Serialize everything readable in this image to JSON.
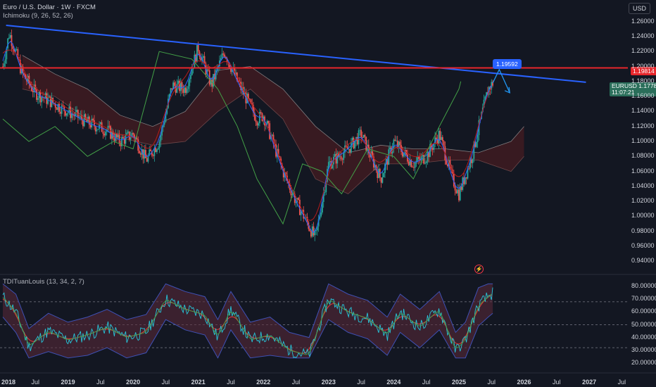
{
  "header": {
    "title": "Euro / U.S. Dollar · 1W · FXCM",
    "ichimoku_label": "Ichimoku (9, 26, 52, 26)",
    "tdi_label": "TDITuanLouis (13, 34, 2, 7)",
    "currency_button": "USD"
  },
  "annotations": {
    "resistance_price": "1.19814",
    "callout_price": "1.19592",
    "pair_symbol": "EURUSD",
    "pair_price": "1.17781",
    "pair_countdown": "11:07:21"
  },
  "colors": {
    "background": "#131722",
    "up_candle": "#26a69a",
    "down_candle": "#ef5350",
    "trendline": "#2962ff",
    "resistance_line": "#e7262b",
    "tenkan": "#2962ff",
    "kijun": "#b71c1c",
    "lagging_span": "#43a047",
    "cloud_bull": "#1b5e20",
    "cloud_bear": "#7f2020"
  },
  "chart_data": [
    {
      "type": "candlestick",
      "symbol": "EURUSD",
      "timeframe": "1W",
      "ylim": [
        0.93,
        1.27
      ],
      "y_ticks": [
        "1.26000",
        "1.24000",
        "1.22000",
        "1.20000",
        "1.18000",
        "1.16000",
        "1.14000",
        "1.12000",
        "1.10000",
        "1.08000",
        "1.06000",
        "1.04000",
        "1.02000",
        "1.00000",
        "0.98000",
        "0.96000",
        "0.94000"
      ],
      "x_ticks": [
        "2018",
        "Jul",
        "2019",
        "Jul",
        "2020",
        "Jul",
        "2021",
        "Jul",
        "2022",
        "Jul",
        "2023",
        "Jul",
        "2024",
        "Jul",
        "2025",
        "Jul",
        "2026",
        "Jul",
        "2027",
        "Jul"
      ],
      "price_path": [
        {
          "x": 2018.0,
          "y": 1.2
        },
        {
          "x": 2018.1,
          "y": 1.245
        },
        {
          "x": 2018.3,
          "y": 1.19
        },
        {
          "x": 2018.5,
          "y": 1.165
        },
        {
          "x": 2018.8,
          "y": 1.15
        },
        {
          "x": 2019.0,
          "y": 1.14
        },
        {
          "x": 2019.3,
          "y": 1.125
        },
        {
          "x": 2019.6,
          "y": 1.115
        },
        {
          "x": 2019.8,
          "y": 1.1
        },
        {
          "x": 2020.0,
          "y": 1.11
        },
        {
          "x": 2020.2,
          "y": 1.075
        },
        {
          "x": 2020.4,
          "y": 1.1
        },
        {
          "x": 2020.6,
          "y": 1.175
        },
        {
          "x": 2020.8,
          "y": 1.17
        },
        {
          "x": 2021.0,
          "y": 1.225
        },
        {
          "x": 2021.2,
          "y": 1.175
        },
        {
          "x": 2021.4,
          "y": 1.22
        },
        {
          "x": 2021.6,
          "y": 1.18
        },
        {
          "x": 2021.9,
          "y": 1.13
        },
        {
          "x": 2022.0,
          "y": 1.135
        },
        {
          "x": 2022.3,
          "y": 1.06
        },
        {
          "x": 2022.5,
          "y": 1.02
        },
        {
          "x": 2022.8,
          "y": 0.97
        },
        {
          "x": 2023.0,
          "y": 1.07
        },
        {
          "x": 2023.3,
          "y": 1.09
        },
        {
          "x": 2023.5,
          "y": 1.11
        },
        {
          "x": 2023.8,
          "y": 1.05
        },
        {
          "x": 2024.0,
          "y": 1.1
        },
        {
          "x": 2024.3,
          "y": 1.07
        },
        {
          "x": 2024.5,
          "y": 1.08
        },
        {
          "x": 2024.7,
          "y": 1.11
        },
        {
          "x": 2024.9,
          "y": 1.05
        },
        {
          "x": 2025.0,
          "y": 1.03
        },
        {
          "x": 2025.2,
          "y": 1.08
        },
        {
          "x": 2025.35,
          "y": 1.135
        },
        {
          "x": 2025.45,
          "y": 1.17
        },
        {
          "x": 2025.52,
          "y": 1.178
        }
      ],
      "trendline": [
        {
          "x": 2018.05,
          "y": 1.255
        },
        {
          "x": 2026.95,
          "y": 1.179
        }
      ],
      "resistance_level": 1.19814,
      "projection": [
        {
          "x": 2025.52,
          "y": 1.178
        },
        {
          "x": 2025.62,
          "y": 1.196
        },
        {
          "x": 2025.78,
          "y": 1.165
        }
      ],
      "lagging_span": [
        {
          "x": 2018.0,
          "y": 1.13
        },
        {
          "x": 2018.4,
          "y": 1.1
        },
        {
          "x": 2018.8,
          "y": 1.12
        },
        {
          "x": 2019.3,
          "y": 1.08
        },
        {
          "x": 2019.7,
          "y": 1.1
        },
        {
          "x": 2020.0,
          "y": 1.09
        },
        {
          "x": 2020.4,
          "y": 1.22
        },
        {
          "x": 2020.9,
          "y": 1.21
        },
        {
          "x": 2021.3,
          "y": 1.17
        },
        {
          "x": 2021.6,
          "y": 1.12
        },
        {
          "x": 2021.9,
          "y": 1.05
        },
        {
          "x": 2022.3,
          "y": 0.99
        },
        {
          "x": 2022.6,
          "y": 1.07
        },
        {
          "x": 2022.9,
          "y": 1.06
        },
        {
          "x": 2023.2,
          "y": 1.03
        },
        {
          "x": 2023.6,
          "y": 1.09
        },
        {
          "x": 2024.0,
          "y": 1.08
        },
        {
          "x": 2024.3,
          "y": 1.05
        },
        {
          "x": 2024.7,
          "y": 1.12
        },
        {
          "x": 2025.0,
          "y": 1.17
        },
        {
          "x": 2025.03,
          "y": 1.18
        }
      ],
      "cloud_upper": [
        {
          "x": 2018.3,
          "y": 1.215
        },
        {
          "x": 2018.8,
          "y": 1.19
        },
        {
          "x": 2019.3,
          "y": 1.17
        },
        {
          "x": 2019.8,
          "y": 1.135
        },
        {
          "x": 2020.3,
          "y": 1.12
        },
        {
          "x": 2020.8,
          "y": 1.14
        },
        {
          "x": 2021.3,
          "y": 1.195
        },
        {
          "x": 2021.8,
          "y": 1.2
        },
        {
          "x": 2022.3,
          "y": 1.17
        },
        {
          "x": 2022.8,
          "y": 1.12
        },
        {
          "x": 2023.3,
          "y": 1.085
        },
        {
          "x": 2023.8,
          "y": 1.095
        },
        {
          "x": 2024.3,
          "y": 1.09
        },
        {
          "x": 2024.8,
          "y": 1.09
        },
        {
          "x": 2025.3,
          "y": 1.085
        },
        {
          "x": 2025.8,
          "y": 1.1
        },
        {
          "x": 2026.0,
          "y": 1.12
        }
      ],
      "cloud_lower": [
        {
          "x": 2018.3,
          "y": 1.17
        },
        {
          "x": 2018.8,
          "y": 1.16
        },
        {
          "x": 2019.3,
          "y": 1.13
        },
        {
          "x": 2019.8,
          "y": 1.105
        },
        {
          "x": 2020.3,
          "y": 1.095
        },
        {
          "x": 2020.8,
          "y": 1.1
        },
        {
          "x": 2021.3,
          "y": 1.14
        },
        {
          "x": 2021.8,
          "y": 1.17
        },
        {
          "x": 2022.3,
          "y": 1.13
        },
        {
          "x": 2022.8,
          "y": 1.05
        },
        {
          "x": 2023.3,
          "y": 1.03
        },
        {
          "x": 2023.8,
          "y": 1.07
        },
        {
          "x": 2024.3,
          "y": 1.07
        },
        {
          "x": 2024.8,
          "y": 1.075
        },
        {
          "x": 2025.3,
          "y": 1.075
        },
        {
          "x": 2025.8,
          "y": 1.06
        },
        {
          "x": 2026.0,
          "y": 1.08
        }
      ]
    },
    {
      "type": "line",
      "name": "TDITuanLouis",
      "ylim": [
        15,
        85
      ],
      "y_ticks": [
        "80.000000",
        "70.000000",
        "60.000000",
        "50.000000",
        "40.000000",
        "30.000000",
        "20.000000"
      ],
      "levels": [
        68,
        50,
        32
      ],
      "rsi": [
        {
          "x": 2018.0,
          "y": 72
        },
        {
          "x": 2018.2,
          "y": 60
        },
        {
          "x": 2018.4,
          "y": 33
        },
        {
          "x": 2018.7,
          "y": 45
        },
        {
          "x": 2019.0,
          "y": 38
        },
        {
          "x": 2019.3,
          "y": 42
        },
        {
          "x": 2019.6,
          "y": 48
        },
        {
          "x": 2019.9,
          "y": 40
        },
        {
          "x": 2020.2,
          "y": 44
        },
        {
          "x": 2020.5,
          "y": 70
        },
        {
          "x": 2020.8,
          "y": 62
        },
        {
          "x": 2021.1,
          "y": 58
        },
        {
          "x": 2021.3,
          "y": 40
        },
        {
          "x": 2021.5,
          "y": 62
        },
        {
          "x": 2021.8,
          "y": 38
        },
        {
          "x": 2022.1,
          "y": 42
        },
        {
          "x": 2022.4,
          "y": 30
        },
        {
          "x": 2022.7,
          "y": 26
        },
        {
          "x": 2023.0,
          "y": 70
        },
        {
          "x": 2023.3,
          "y": 60
        },
        {
          "x": 2023.6,
          "y": 55
        },
        {
          "x": 2023.9,
          "y": 42
        },
        {
          "x": 2024.1,
          "y": 60
        },
        {
          "x": 2024.4,
          "y": 48
        },
        {
          "x": 2024.7,
          "y": 62
        },
        {
          "x": 2024.95,
          "y": 30
        },
        {
          "x": 2025.1,
          "y": 38
        },
        {
          "x": 2025.3,
          "y": 65
        },
        {
          "x": 2025.45,
          "y": 72
        },
        {
          "x": 2025.52,
          "y": 75
        }
      ]
    }
  ]
}
